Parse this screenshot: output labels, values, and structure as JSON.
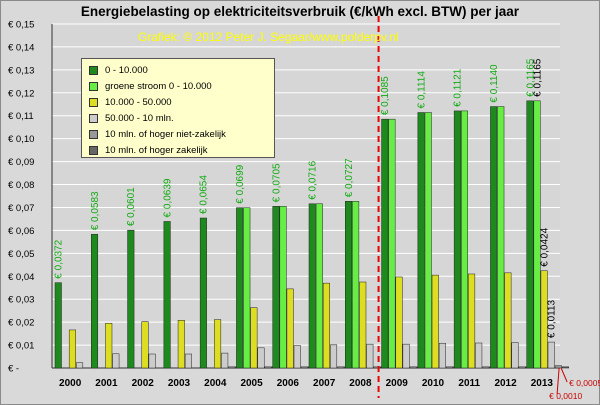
{
  "chart_data": {
    "type": "bar",
    "title": "Energiebelasting op elektriciteitsverbruik (€/kWh excl. BTW) per jaar",
    "credit": "Grafiek: © 2012 Peter J. Segaar/www.polderpv.nl",
    "categories": [
      "2000",
      "2001",
      "2002",
      "2003",
      "2004",
      "2005",
      "2006",
      "2007",
      "2008",
      "2009",
      "2010",
      "2011",
      "2012",
      "2013"
    ],
    "ylim": [
      0,
      0.15
    ],
    "ytick_labels": [
      "€ -",
      "€ 0,01",
      "€ 0,02",
      "€ 0,03",
      "€ 0,04",
      "€ 0,05",
      "€ 0,06",
      "€ 0,07",
      "€ 0,08",
      "€ 0,09",
      "€ 0,10",
      "€ 0,11",
      "€ 0,12",
      "€ 0,13",
      "€ 0,14",
      "€ 0,15"
    ],
    "grid": true,
    "legend_position": "top-left",
    "series": [
      {
        "name": "0 - 10.000",
        "color": "#1e8a1e",
        "values": [
          0.0372,
          0.0583,
          0.0601,
          0.0639,
          0.0654,
          0.0699,
          0.0705,
          0.0716,
          0.0727,
          0.1085,
          0.1114,
          0.1121,
          0.114,
          0.1165
        ]
      },
      {
        "name": "groene stroom 0 - 10.000",
        "color": "#66ee44",
        "values": [
          0,
          0,
          0,
          0,
          0,
          0.0699,
          0.0705,
          0.0716,
          0.0727,
          0.1085,
          0.1114,
          0.1121,
          0.114,
          0.1165
        ]
      },
      {
        "name": "10.000 - 50.000",
        "color": "#dddd22",
        "values": [
          0.0166,
          0.0195,
          0.0202,
          0.0208,
          0.0211,
          0.0263,
          0.0345,
          0.037,
          0.0375,
          0.0397,
          0.0405,
          0.041,
          0.0415,
          0.0424
        ]
      },
      {
        "name": "50.000 - 10 mln.",
        "color": "#cccccc",
        "values": [
          0.0023,
          0.0062,
          0.0061,
          0.0061,
          0.0065,
          0.0088,
          0.0098,
          0.0101,
          0.0104,
          0.0104,
          0.0108,
          0.0109,
          0.0111,
          0.0113
        ]
      },
      {
        "name": "10 mln. of hoger niet-zakelijk",
        "color": "#999999",
        "values": [
          0,
          0,
          0,
          0,
          0.0005,
          0.0005,
          0.0005,
          0.0005,
          0.0005,
          0.0005,
          0.0005,
          0.0005,
          0.0005,
          0.001
        ]
      },
      {
        "name": "10 mln. of hoger zakelijk",
        "color": "#666666",
        "values": [
          0,
          0,
          0,
          0,
          0.0005,
          0.0005,
          0.0005,
          0.0005,
          0.0005,
          0.0005,
          0.0005,
          0.0005,
          0.0005,
          0.0005
        ]
      }
    ],
    "data_labels": {
      "main": [
        "€ 0,0372",
        "€ 0,0583",
        "€ 0,0601",
        "€ 0,0639",
        "€ 0,0654",
        "€ 0,0699",
        "€ 0,0705",
        "€ 0,0716",
        "€ 0,0727",
        "€ 0,1085",
        "€ 0,1114",
        "€ 0,1121",
        "€ 0,1140",
        "€ 0,1165"
      ],
      "extra_2013": [
        "€ 0,1165",
        "€ 0,0424",
        "€ 0,0113"
      ],
      "small_2013": [
        "€ 0,0005",
        "€ 0,0010"
      ]
    },
    "divider_after_category": "2008",
    "colors": {
      "plot_bg": "#d6d6d6",
      "grid": "#ffffff",
      "divider": "#ee0000",
      "main_label": "#11aa11",
      "black_label": "#000000",
      "red_label": "#cc0000"
    }
  }
}
